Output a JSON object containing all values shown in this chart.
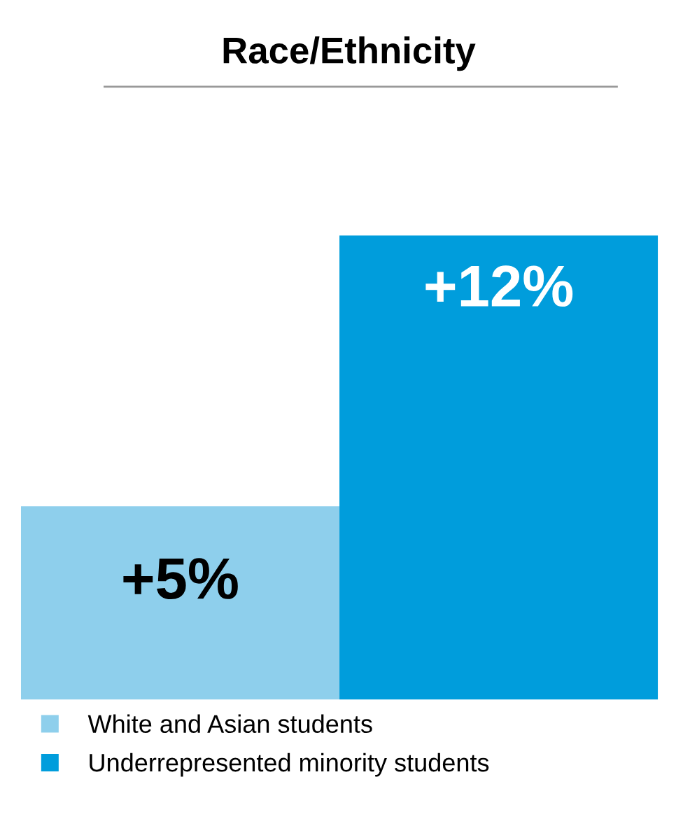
{
  "chart_data": {
    "type": "bar",
    "title": "Race/Ethnicity",
    "categories": [
      null
    ],
    "ylim": [
      0,
      12
    ],
    "legend": "bottom",
    "grid": false,
    "series": [
      {
        "name": "White and Asian students",
        "color": "#8ecfec",
        "values": [
          5
        ],
        "value_labels": [
          "+5%"
        ]
      },
      {
        "name": "Underrepresented minority students",
        "color": "#009ddc",
        "values": [
          12
        ],
        "value_labels": [
          "+12%"
        ]
      }
    ]
  }
}
